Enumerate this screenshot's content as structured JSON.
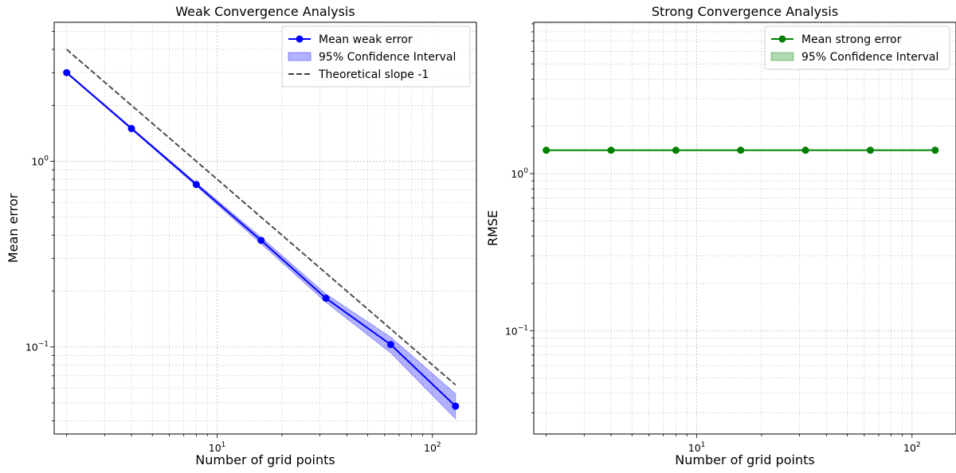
{
  "chart_data": [
    {
      "type": "line",
      "title": "Weak Convergence Analysis",
      "xlabel": "Number of grid points",
      "ylabel": "Mean error",
      "xscale": "log",
      "yscale": "log",
      "xlim": [
        1.75,
        160
      ],
      "ylim": [
        0.034,
        5.6
      ],
      "grid": true,
      "legend": {
        "position": "top-right"
      },
      "x_ticks": [
        {
          "value": 10,
          "base": "10",
          "exp": "1"
        },
        {
          "value": 100,
          "base": "10",
          "exp": "2"
        }
      ],
      "y_ticks": [
        {
          "value": 0.1,
          "base": "10",
          "exp": "−1"
        },
        {
          "value": 1,
          "base": "10",
          "exp": "0"
        }
      ],
      "x": [
        2,
        4,
        8,
        16,
        32,
        64,
        128
      ],
      "series": [
        {
          "name": "Mean weak error",
          "style": "line-marker",
          "color": "#0000ff",
          "values": [
            3.0,
            1.5,
            0.75,
            0.375,
            0.183,
            0.103,
            0.048
          ]
        },
        {
          "name": "95% Confidence Interval",
          "style": "band",
          "color": "#0000ff",
          "lower": [
            2.97,
            1.48,
            0.735,
            0.36,
            0.174,
            0.093,
            0.041
          ],
          "upper": [
            3.03,
            1.52,
            0.765,
            0.39,
            0.193,
            0.113,
            0.056
          ]
        },
        {
          "name": "Theoretical slope -1",
          "style": "dashed",
          "color": "#444444",
          "values": [
            4.0,
            2.0,
            1.0,
            0.5,
            0.25,
            0.125,
            0.0625
          ]
        }
      ]
    },
    {
      "type": "line",
      "title": "Strong Convergence Analysis",
      "xlabel": "Number of grid points",
      "ylabel": "RMSE",
      "xscale": "log",
      "yscale": "log",
      "xlim": [
        1.75,
        160
      ],
      "ylim": [
        0.022,
        9.2
      ],
      "grid": true,
      "legend": {
        "position": "top-right"
      },
      "x_ticks": [
        {
          "value": 10,
          "base": "10",
          "exp": "1"
        },
        {
          "value": 100,
          "base": "10",
          "exp": "2"
        }
      ],
      "y_ticks": [
        {
          "value": 0.1,
          "base": "10",
          "exp": "−1"
        },
        {
          "value": 1,
          "base": "10",
          "exp": "0"
        }
      ],
      "x": [
        2,
        4,
        8,
        16,
        32,
        64,
        128
      ],
      "series": [
        {
          "name": "Mean strong error",
          "style": "line-marker",
          "color": "#008000",
          "values": [
            1.41,
            1.41,
            1.41,
            1.41,
            1.41,
            1.41,
            1.41
          ]
        },
        {
          "name": "95% Confidence Interval",
          "style": "band",
          "color": "#008000",
          "lower": [
            1.41,
            1.41,
            1.41,
            1.41,
            1.41,
            1.41,
            1.41
          ],
          "upper": [
            1.41,
            1.41,
            1.41,
            1.41,
            1.41,
            1.41,
            1.41
          ]
        }
      ]
    }
  ]
}
